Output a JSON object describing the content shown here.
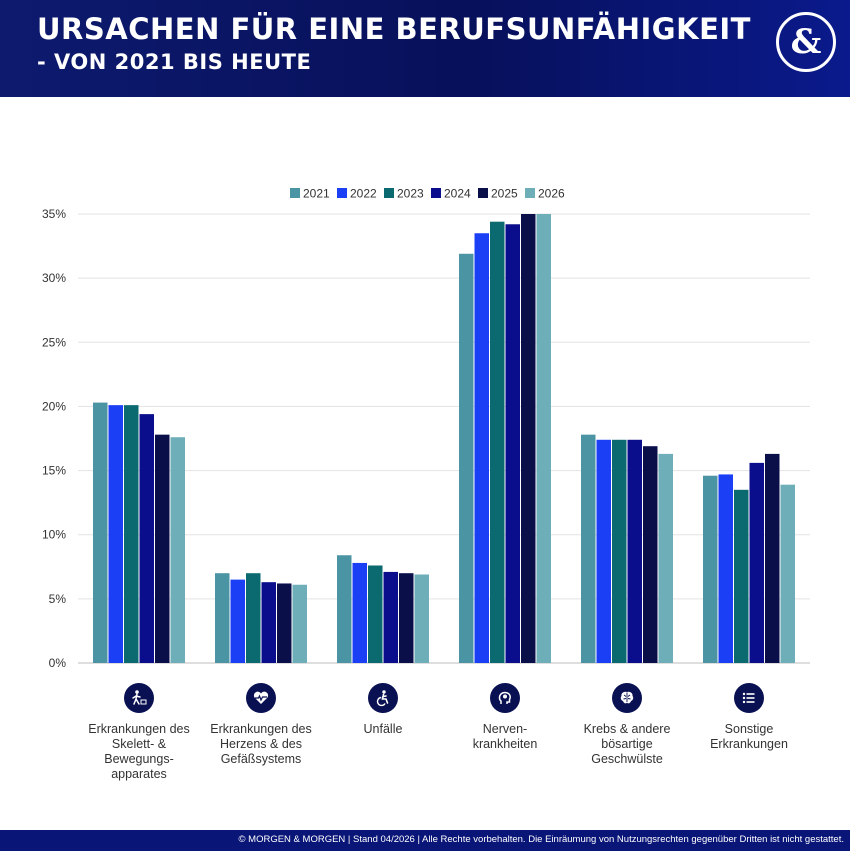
{
  "header": {
    "title_line1": "Ursachen für eine Berufsunfähigkeit",
    "title_line2": "- von 2021 bis heute",
    "logo_text": "&"
  },
  "footer": {
    "text": "© MORGEN & MORGEN | Stand 04/2026 | Alle Rechte vorbehalten. Die Einräumung von Nutzungsrechten gegenüber Dritten ist nicht gestattet."
  },
  "colors": {
    "header_bg": "#07105a",
    "footer_bg": "#0a1578",
    "icon_bg": "#0a1152"
  },
  "chart_data": {
    "type": "bar",
    "title": "",
    "xlabel": "",
    "ylabel": "",
    "ylim": [
      0,
      35
    ],
    "y_ticks": [
      "0%",
      "5%",
      "10%",
      "15%",
      "20%",
      "25%",
      "30%",
      "35%"
    ],
    "y_tick_values": [
      0,
      5,
      10,
      15,
      20,
      25,
      30,
      35
    ],
    "grid": true,
    "legend_position": "top-center",
    "categories": [
      "Erkrankungen des Skelett- & Bewegungs-apparates",
      "Erkrankungen des Herzens & des Gefäßsystems",
      "Unfälle",
      "Nerven-krankheiten",
      "Krebs & andere bösartige Geschwülste",
      "Sonstige Erkrankungen"
    ],
    "category_label_lines": [
      [
        "Erkrankungen des",
        "Skelett- &",
        "Bewegungs-",
        "apparates"
      ],
      [
        "Erkrankungen des",
        "Herzens & des",
        "Gefäßsystems"
      ],
      [
        "Unfälle"
      ],
      [
        "Nerven-",
        "krankheiten"
      ],
      [
        "Krebs & andere",
        "bösartige",
        "Geschwülste"
      ],
      [
        "Sonstige",
        "Erkrankungen"
      ]
    ],
    "category_icons": [
      "skeleton-icon",
      "heart-icon",
      "accident-icon",
      "nerve-head-icon",
      "brain-icon",
      "list-icon"
    ],
    "series": [
      {
        "name": "2021",
        "color": "#4b94a3",
        "values": [
          20.3,
          7.0,
          8.4,
          31.9,
          17.8,
          14.6
        ]
      },
      {
        "name": "2022",
        "color": "#1b3ff5",
        "values": [
          20.1,
          6.5,
          7.8,
          33.5,
          17.4,
          14.7
        ]
      },
      {
        "name": "2023",
        "color": "#0b6a70",
        "values": [
          20.1,
          7.0,
          7.6,
          34.4,
          17.4,
          13.5
        ]
      },
      {
        "name": "2024",
        "color": "#0b0e8c",
        "values": [
          19.4,
          6.3,
          7.1,
          34.2,
          17.4,
          15.6
        ]
      },
      {
        "name": "2025",
        "color": "#0a0f4a",
        "values": [
          17.8,
          6.2,
          7.0,
          35.0,
          16.9,
          16.3
        ]
      },
      {
        "name": "2026",
        "color": "#6daeb9",
        "values": [
          17.6,
          6.1,
          6.9,
          35.0,
          16.3,
          13.9
        ]
      }
    ]
  }
}
